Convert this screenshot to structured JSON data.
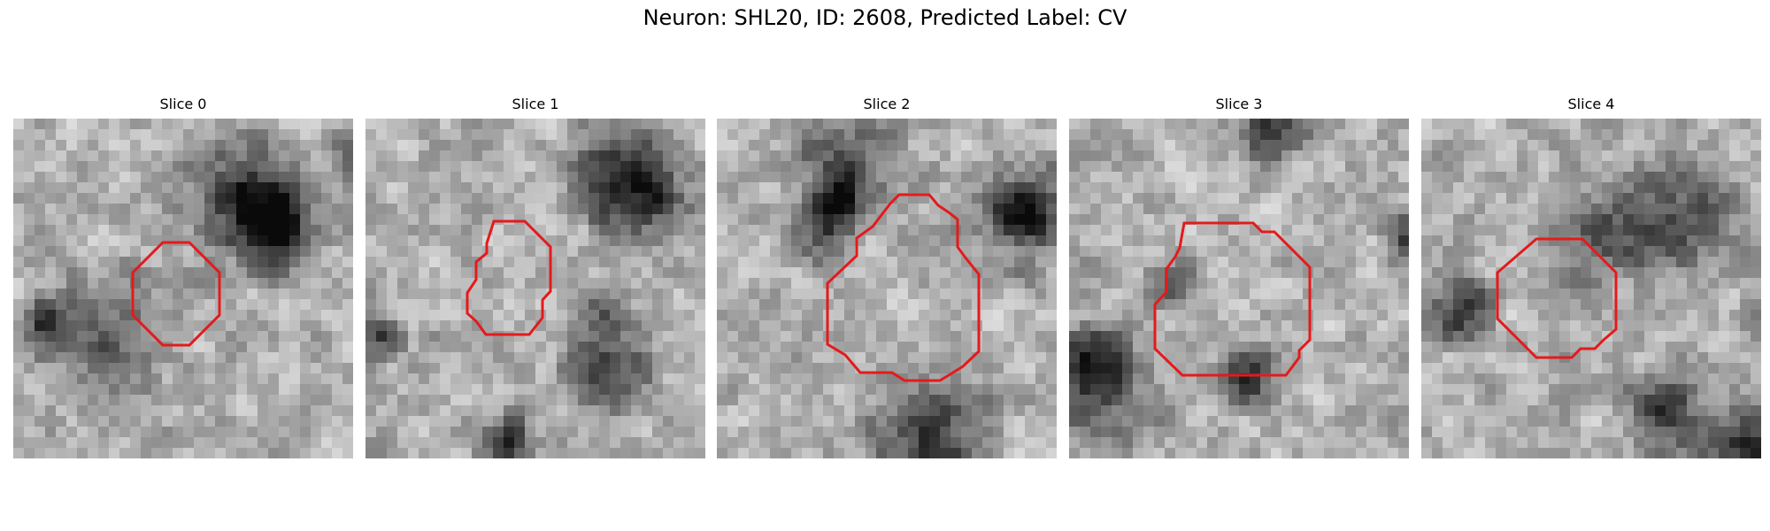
{
  "figure": {
    "title": "Neuron: SHL20, ID: 2608, Predicted Label: CV",
    "contour_color": "#e41a1c",
    "colormap": "gray"
  },
  "panels": [
    {
      "title": "Slice 0",
      "image_alt": "grayscale microscopy patch",
      "contour": "red outline around cell body"
    },
    {
      "title": "Slice 1",
      "image_alt": "grayscale microscopy patch",
      "contour": "red outline around cell body"
    },
    {
      "title": "Slice 2",
      "image_alt": "grayscale microscopy patch",
      "contour": "red outline around cell body"
    },
    {
      "title": "Slice 3",
      "image_alt": "grayscale microscopy patch",
      "contour": "red outline around cell body"
    },
    {
      "title": "Slice 4",
      "image_alt": "grayscale microscopy patch",
      "contour": "red outline around cell body"
    }
  ]
}
